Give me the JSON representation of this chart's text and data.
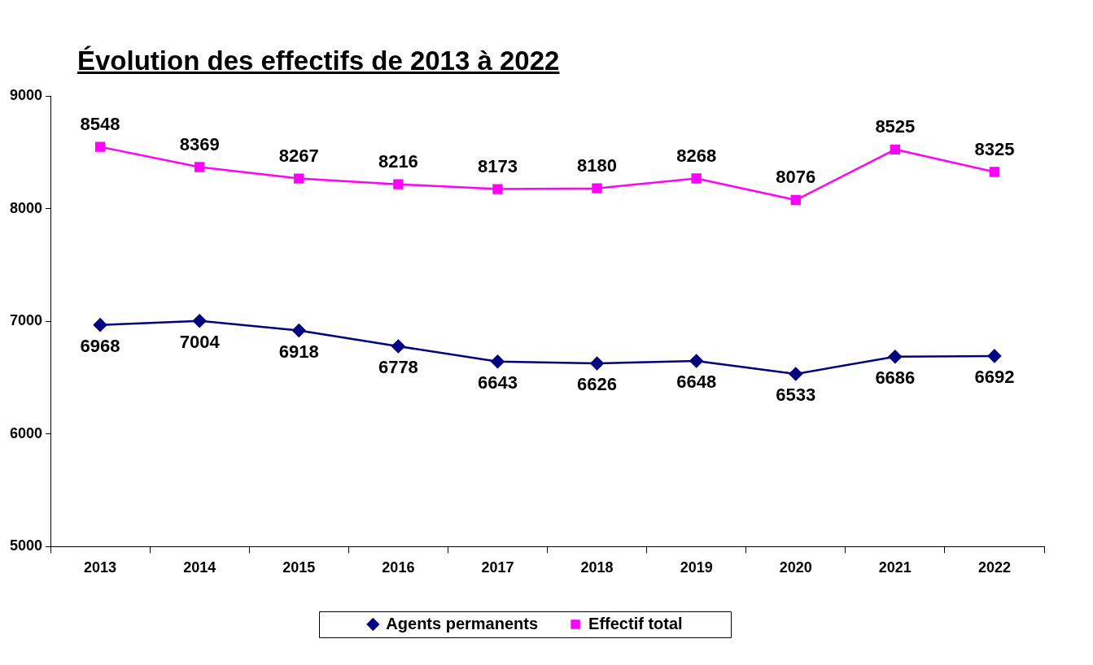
{
  "chart_data": {
    "type": "line",
    "title": "Évolution des effectifs de 2013 à 2022",
    "categories": [
      "2013",
      "2014",
      "2015",
      "2016",
      "2017",
      "2018",
      "2019",
      "2020",
      "2021",
      "2022"
    ],
    "series": [
      {
        "name": "Agents permanents",
        "color": "#000080",
        "marker": "diamond",
        "values": [
          6968,
          7004,
          6918,
          6778,
          6643,
          6626,
          6648,
          6533,
          6686,
          6692
        ]
      },
      {
        "name": "Effectif total",
        "color": "#ff00ff",
        "marker": "square",
        "values": [
          8548,
          8369,
          8267,
          8216,
          8173,
          8180,
          8268,
          8076,
          8525,
          8325
        ]
      }
    ],
    "ylim": [
      5000,
      9000
    ],
    "yticks": [
      5000,
      6000,
      7000,
      8000,
      9000
    ],
    "data_labels": true,
    "legend": "bottom",
    "line_style": "solid"
  }
}
